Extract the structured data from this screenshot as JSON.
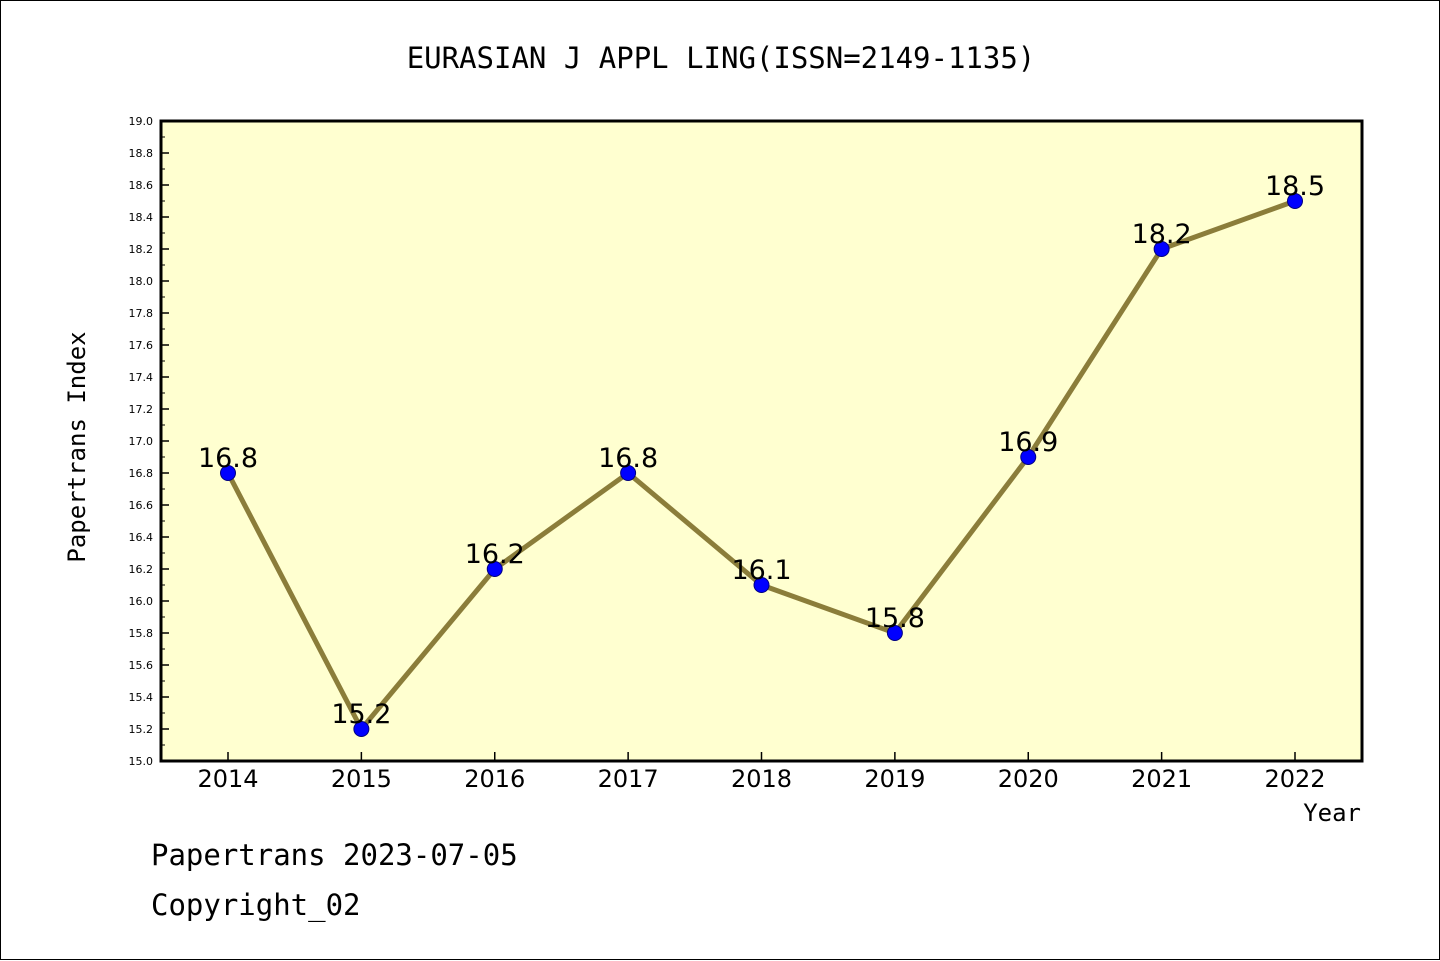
{
  "chart_data": {
    "type": "line",
    "title": "EURASIAN J APPL LING(ISSN=2149-1135)",
    "xlabel": "Year",
    "ylabel": "Papertrans Index",
    "categories": [
      "2014",
      "2015",
      "2016",
      "2017",
      "2018",
      "2019",
      "2020",
      "2021",
      "2022"
    ],
    "series": [
      {
        "values": [
          16.8,
          15.2,
          16.2,
          16.8,
          16.1,
          15.8,
          16.9,
          18.2,
          18.5
        ]
      }
    ],
    "data_labels": [
      "16.8",
      "15.2",
      "16.2",
      "16.8",
      "16.1",
      "15.8",
      "16.9",
      "18.2",
      "18.5"
    ],
    "ylim": [
      15.0,
      19.0
    ],
    "ytick_labels": [
      "15.0",
      "15.2",
      "15.4",
      "15.6",
      "15.8",
      "16.0",
      "16.2",
      "16.4",
      "16.6",
      "16.8",
      "17.0",
      "17.2",
      "17.4",
      "17.6",
      "17.8",
      "18.0",
      "18.2",
      "18.4",
      "18.6",
      "18.8",
      "19.0"
    ],
    "grid": false,
    "colors": {
      "plot_background": "#ffffd0",
      "line": "#8b7d3a",
      "marker": "#0000ff",
      "marker_edge": "#000080"
    }
  },
  "footer": {
    "line1": "Papertrans 2023-07-05",
    "line2": "Copyright_02"
  }
}
